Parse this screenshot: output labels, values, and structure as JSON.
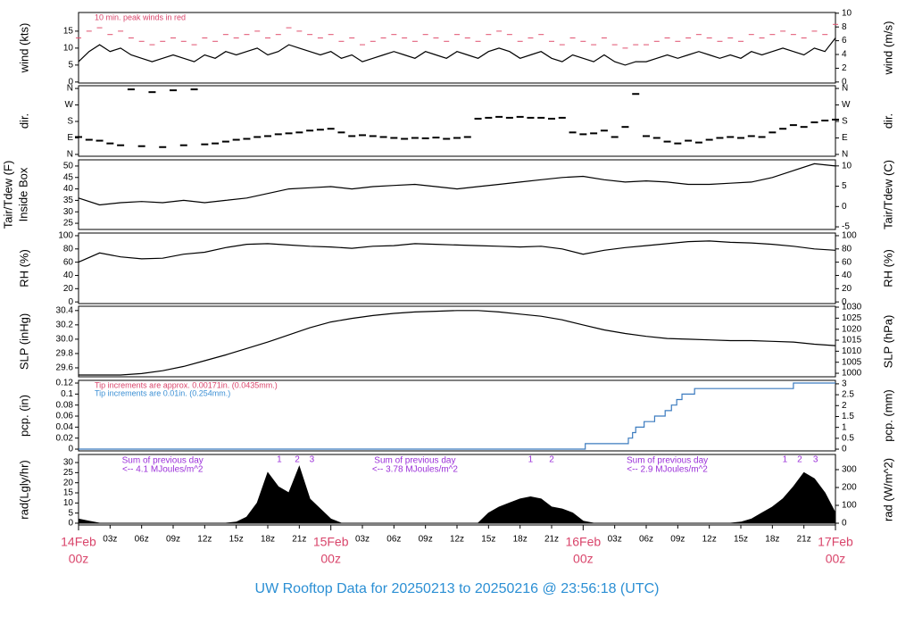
{
  "title": "UW Rooftop Data for 20250213  to  20250216 @ 23:56:18  (UTC)",
  "xaxis": {
    "xlim": [
      0,
      72
    ],
    "xticks": [
      {
        "value": 3,
        "label": "03z"
      },
      {
        "value": 6,
        "label": "06z"
      },
      {
        "value": 9,
        "label": "09z"
      },
      {
        "value": 12,
        "label": "12z"
      },
      {
        "value": 15,
        "label": "15z"
      },
      {
        "value": 18,
        "label": "18z"
      },
      {
        "value": 21,
        "label": "21z"
      },
      {
        "value": 27,
        "label": "03z"
      },
      {
        "value": 30,
        "label": "06z"
      },
      {
        "value": 33,
        "label": "09z"
      },
      {
        "value": 36,
        "label": "12z"
      },
      {
        "value": 39,
        "label": "15z"
      },
      {
        "value": 42,
        "label": "18z"
      },
      {
        "value": 45,
        "label": "21z"
      },
      {
        "value": 51,
        "label": "03z"
      },
      {
        "value": 54,
        "label": "06z"
      },
      {
        "value": 57,
        "label": "09z"
      },
      {
        "value": 60,
        "label": "12z"
      },
      {
        "value": 63,
        "label": "15z"
      },
      {
        "value": 66,
        "label": "18z"
      },
      {
        "value": 69,
        "label": "21z"
      }
    ],
    "day_ticks": [
      {
        "value": 0,
        "label": "14Feb",
        "time": "00z"
      },
      {
        "value": 24,
        "label": "15Feb",
        "time": "00z"
      },
      {
        "value": 48,
        "label": "16Feb",
        "time": "00z"
      },
      {
        "value": 72,
        "label": "17Feb",
        "time": "00z"
      }
    ],
    "day_color": "#d9456b"
  },
  "chart_data": [
    {
      "type": "line",
      "ylabel": "wind (kts)",
      "y2label": "wind (m/s)",
      "ylim": [
        -0.3,
        20.5
      ],
      "yticks": [
        0,
        5,
        10,
        15
      ],
      "y2lim": [
        -0.15,
        10.1
      ],
      "y2ticks": [
        0,
        2,
        4,
        6,
        8,
        10
      ],
      "annotations": [
        {
          "text": "10 min. peak winds in red",
          "color": "#d9456b"
        }
      ],
      "x": [
        0,
        1,
        2,
        3,
        4,
        5,
        6,
        7,
        8,
        9,
        10,
        11,
        12,
        13,
        14,
        15,
        16,
        17,
        18,
        19,
        20,
        21,
        22,
        23,
        24,
        25,
        26,
        27,
        28,
        29,
        30,
        31,
        32,
        33,
        34,
        35,
        36,
        37,
        38,
        39,
        40,
        41,
        42,
        43,
        44,
        45,
        46,
        47,
        48,
        49,
        50,
        51,
        52,
        53,
        54,
        55,
        56,
        57,
        58,
        59,
        60,
        61,
        62,
        63,
        64,
        65,
        66,
        67,
        68,
        69,
        70,
        71,
        72
      ],
      "series": [
        {
          "color": "#000000",
          "marker": "line",
          "values": [
            6,
            9,
            11,
            9,
            10,
            8,
            7,
            6,
            7,
            8,
            7,
            6,
            8,
            7,
            9,
            8,
            9,
            10,
            8,
            9,
            11,
            10,
            9,
            8,
            9,
            7,
            8,
            6,
            7,
            8,
            9,
            8,
            7,
            9,
            8,
            7,
            9,
            8,
            7,
            9,
            10,
            9,
            7,
            8,
            9,
            7,
            6,
            8,
            7,
            6,
            8,
            6,
            5,
            6,
            6,
            7,
            8,
            7,
            8,
            9,
            8,
            7,
            8,
            7,
            9,
            8,
            9,
            10,
            9,
            8,
            10,
            9,
            13
          ]
        },
        {
          "color": "#e0506e",
          "marker": "dash",
          "values": [
            13,
            15,
            16,
            14,
            15,
            13,
            12,
            11,
            12,
            13,
            12,
            11,
            13,
            12,
            14,
            13,
            14,
            15,
            13,
            14,
            16,
            15,
            14,
            13,
            14,
            12,
            13,
            11,
            12,
            13,
            14,
            13,
            12,
            14,
            13,
            12,
            14,
            13,
            12,
            14,
            15,
            14,
            12,
            13,
            14,
            12,
            11,
            13,
            12,
            11,
            13,
            11,
            10,
            11,
            11,
            12,
            13,
            12,
            13,
            14,
            13,
            12,
            13,
            12,
            14,
            13,
            14,
            15,
            14,
            13,
            15,
            14,
            17
          ]
        }
      ]
    },
    {
      "type": "scatter",
      "ylabel": "dir.",
      "y2label": "dir.",
      "ylim": [
        -10,
        375
      ],
      "yticks": [
        {
          "value": 0,
          "label": "N"
        },
        {
          "value": 90,
          "label": "E"
        },
        {
          "value": 180,
          "label": "S"
        },
        {
          "value": 270,
          "label": "W"
        },
        {
          "value": 360,
          "label": "N"
        }
      ],
      "y2lim": [
        -10,
        375
      ],
      "y2ticks": [
        {
          "value": 0,
          "label": "N"
        },
        {
          "value": 90,
          "label": "E"
        },
        {
          "value": 180,
          "label": "S"
        },
        {
          "value": 270,
          "label": "W"
        },
        {
          "value": 360,
          "label": "N"
        }
      ],
      "x": [
        0,
        1,
        2,
        3,
        4,
        5,
        6,
        7,
        8,
        9,
        10,
        11,
        12,
        13,
        14,
        15,
        16,
        17,
        18,
        19,
        20,
        21,
        22,
        23,
        24,
        25,
        26,
        27,
        28,
        29,
        30,
        31,
        32,
        33,
        34,
        35,
        36,
        37,
        38,
        39,
        40,
        41,
        42,
        43,
        44,
        45,
        46,
        47,
        48,
        49,
        50,
        51,
        52,
        53,
        54,
        55,
        56,
        57,
        58,
        59,
        60,
        61,
        62,
        63,
        64,
        65,
        66,
        67,
        68,
        69,
        70,
        71,
        72
      ],
      "series": [
        {
          "color": "#000000",
          "values": [
            95,
            80,
            75,
            60,
            50,
            355,
            45,
            340,
            40,
            350,
            50,
            355,
            55,
            60,
            70,
            80,
            85,
            95,
            100,
            110,
            115,
            120,
            130,
            135,
            140,
            120,
            100,
            105,
            100,
            95,
            90,
            85,
            90,
            88,
            92,
            85,
            90,
            95,
            195,
            200,
            205,
            200,
            205,
            200,
            200,
            195,
            200,
            120,
            110,
            115,
            130,
            95,
            150,
            330,
            100,
            90,
            70,
            60,
            75,
            65,
            80,
            90,
            95,
            90,
            100,
            95,
            120,
            140,
            160,
            150,
            175,
            185,
            190
          ]
        }
      ]
    },
    {
      "type": "line",
      "ylabel": [
        "Tair/Tdew (F)",
        "Inside Box"
      ],
      "y2label": "Tair/Tdew (C)",
      "ylim": [
        22.3,
        52.7
      ],
      "yticks": [
        25,
        30,
        35,
        40,
        45,
        50
      ],
      "y2lim": [
        -5.65,
        11.5
      ],
      "y2ticks": [
        -5,
        0,
        5,
        10
      ],
      "x": [
        0,
        2,
        4,
        6,
        8,
        10,
        12,
        14,
        16,
        18,
        20,
        22,
        24,
        26,
        28,
        30,
        32,
        34,
        36,
        38,
        40,
        42,
        44,
        46,
        48,
        50,
        52,
        54,
        56,
        58,
        60,
        62,
        64,
        66,
        68,
        70,
        72
      ],
      "series": [
        {
          "color": "#000000",
          "marker": "line",
          "values": [
            36,
            33,
            34,
            34.5,
            34,
            35,
            34,
            35,
            36,
            38,
            40,
            40.5,
            41,
            40,
            41,
            41.5,
            42,
            41,
            40,
            41,
            42,
            43,
            44,
            45,
            45.5,
            44,
            43,
            43.5,
            43,
            42,
            42,
            42.5,
            43,
            45,
            48,
            51,
            50
          ]
        }
      ]
    },
    {
      "type": "line",
      "ylabel": "RH (%)",
      "y2label": "RH (%)",
      "ylim": [
        -2.5,
        104
      ],
      "yticks": [
        0,
        20,
        40,
        60,
        80,
        100
      ],
      "y2lim": [
        -2.5,
        104
      ],
      "y2ticks": [
        0,
        20,
        40,
        60,
        80,
        100
      ],
      "x": [
        0,
        2,
        4,
        6,
        8,
        10,
        12,
        14,
        16,
        18,
        20,
        22,
        24,
        26,
        28,
        30,
        32,
        34,
        36,
        38,
        40,
        42,
        44,
        46,
        48,
        50,
        52,
        54,
        56,
        58,
        60,
        62,
        64,
        66,
        68,
        70,
        72
      ],
      "series": [
        {
          "color": "#000000",
          "marker": "line",
          "values": [
            60,
            74,
            68,
            65,
            66,
            72,
            75,
            82,
            87,
            88,
            86,
            84,
            83,
            81,
            84,
            85,
            88,
            87,
            86,
            85,
            84,
            83,
            84,
            80,
            72,
            78,
            82,
            85,
            88,
            91,
            92,
            90,
            89,
            87,
            84,
            80,
            78
          ]
        }
      ]
    },
    {
      "type": "line",
      "ylabel": "SLP (inHg)",
      "y2label": "SLP (hPa)",
      "ylim": [
        29.475,
        30.46
      ],
      "yticks": [
        29.6,
        29.8,
        {
          "value": 30,
          "label": "30.0"
        },
        30.2,
        30.4
      ],
      "y2lim": [
        998.4,
        1030.4
      ],
      "y2ticks": [
        1000,
        1005,
        1010,
        1015,
        1020,
        1025,
        1030
      ],
      "x": [
        0,
        2,
        4,
        6,
        8,
        10,
        12,
        14,
        16,
        18,
        20,
        22,
        24,
        26,
        28,
        30,
        32,
        34,
        36,
        38,
        40,
        42,
        44,
        46,
        48,
        50,
        52,
        54,
        56,
        58,
        60,
        62,
        64,
        66,
        68,
        70,
        72
      ],
      "series": [
        {
          "color": "#000000",
          "marker": "line",
          "values": [
            29.5,
            29.5,
            29.5,
            29.52,
            29.56,
            29.62,
            29.7,
            29.78,
            29.87,
            29.96,
            30.06,
            30.16,
            30.24,
            30.29,
            30.33,
            30.36,
            30.38,
            30.39,
            30.4,
            30.4,
            30.38,
            30.35,
            30.32,
            30.27,
            30.2,
            30.13,
            30.08,
            30.04,
            30.01,
            30,
            29.99,
            29.98,
            29.98,
            29.97,
            29.96,
            29.93,
            29.91
          ]
        }
      ]
    },
    {
      "type": "step",
      "ylabel": "pcp. (in)",
      "y2label": "pcp. (mm)",
      "ylim": [
        -0.0032,
        0.1249
      ],
      "yticks": [
        0,
        0.02,
        0.04,
        0.06,
        0.08,
        0.1,
        0.12
      ],
      "y2lim": [
        -0.08,
        3.16
      ],
      "y2ticks": [
        0,
        0.5,
        1,
        1.5,
        2,
        2.5,
        3
      ],
      "annotations": [
        {
          "text": "Tip increments are approx. 0.00171in. (0.0435mm.)",
          "color": "#d9456b"
        },
        {
          "text": "Tip increments are 0.01in. (0.254mm.)",
          "color": "#3b8fd4"
        }
      ],
      "x": [
        0,
        48.2,
        52.3,
        52.7,
        53,
        53.8,
        54.8,
        55.8,
        56.4,
        56.9,
        57.4,
        58.6,
        68,
        72
      ],
      "series": [
        {
          "color": "#3b7bbf",
          "values": [
            0,
            0.01,
            0.02,
            0.03,
            0.04,
            0.05,
            0.06,
            0.07,
            0.08,
            0.09,
            0.1,
            0.11,
            0.12,
            0.12
          ]
        }
      ]
    },
    {
      "type": "area",
      "ylabel": "rad(Lgly/hr)",
      "y2label": "rad (W/m^2)",
      "ylim": [
        -0.9,
        34
      ],
      "yticks": [
        0,
        5,
        10,
        15,
        20,
        25,
        30
      ],
      "y2lim": [
        -10,
        385
      ],
      "y2ticks": [
        0,
        100,
        200,
        300
      ],
      "note_color": "#9b30d9",
      "annotations": [
        {
          "text": "Sum of previous day",
          "value_text": "<-- 4.1 MJoules/m^2"
        },
        {
          "text": "Sum of previous day",
          "value_text": "<-- 3.78 MJoules/m^2"
        },
        {
          "text": "Sum of previous day",
          "value_text": "<-- 2.9 MJoules/m^2"
        }
      ],
      "markers": [
        {
          "x": 19.1,
          "label": "1"
        },
        {
          "x": 20.8,
          "label": "2"
        },
        {
          "x": 22.2,
          "label": "3"
        },
        {
          "x": 43,
          "label": "1"
        },
        {
          "x": 45,
          "label": "2"
        },
        {
          "x": 67.2,
          "label": "1"
        },
        {
          "x": 68.6,
          "label": "2"
        },
        {
          "x": 70.1,
          "label": "3"
        }
      ],
      "x": [
        0,
        1,
        2,
        3,
        4,
        5,
        6,
        7,
        8,
        9,
        10,
        11,
        12,
        13,
        14,
        15,
        16,
        17,
        18,
        19,
        20,
        21,
        22,
        23,
        24,
        25,
        26,
        27,
        28,
        29,
        30,
        31,
        32,
        33,
        34,
        35,
        36,
        37,
        38,
        39,
        40,
        41,
        42,
        43,
        44,
        45,
        46,
        47,
        48,
        49,
        50,
        51,
        52,
        53,
        54,
        55,
        56,
        57,
        58,
        59,
        60,
        61,
        62,
        63,
        64,
        65,
        66,
        67,
        68,
        69,
        70,
        71,
        72
      ],
      "series": [
        {
          "color": "#000000",
          "values": [
            2,
            1,
            0,
            0,
            0,
            0,
            0,
            0,
            0,
            0,
            0,
            0,
            0,
            0,
            0,
            0.5,
            3,
            10,
            25,
            18,
            15,
            28,
            12,
            7,
            2,
            0,
            0,
            0,
            0,
            0,
            0,
            0,
            0,
            0,
            0,
            0,
            0,
            0,
            0,
            5,
            8,
            10,
            12,
            13,
            12,
            8,
            7,
            5,
            1,
            0,
            0,
            0,
            0,
            0,
            0,
            0,
            0,
            0,
            0,
            0,
            0,
            0,
            0,
            0.5,
            2,
            5,
            8,
            12,
            18,
            25,
            22,
            15,
            5
          ]
        }
      ]
    }
  ]
}
